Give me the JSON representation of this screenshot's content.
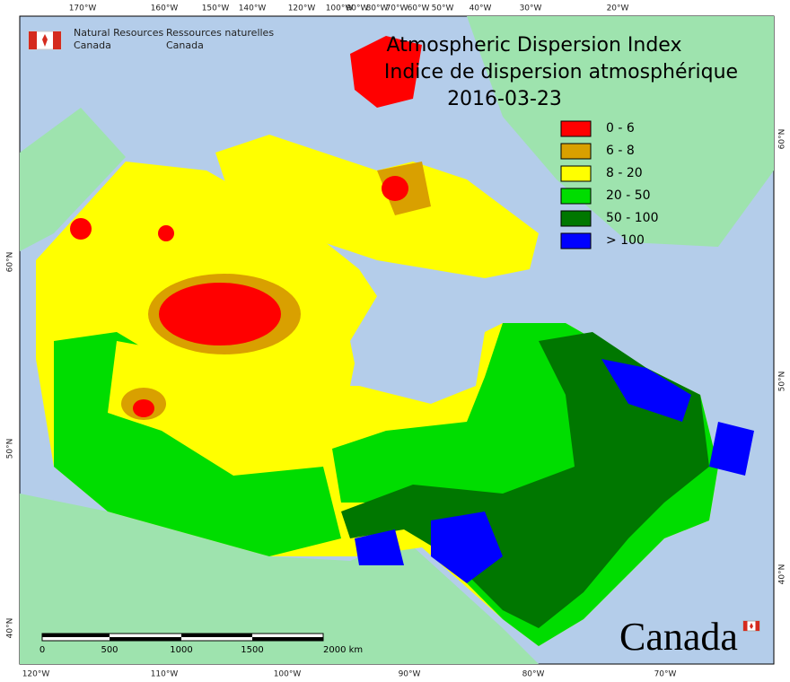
{
  "header": {
    "org_en": [
      "Natural Resources",
      "Canada"
    ],
    "org_fr": [
      "Ressources naturelles",
      "Canada"
    ]
  },
  "title": {
    "en": "Atmospheric Dispersion Index",
    "fr": "Indice de dispersion atmosphérique",
    "date": "2016-03-23"
  },
  "legend": [
    {
      "label": "0 - 6",
      "color": "#ff0000"
    },
    {
      "label": "6 - 8",
      "color": "#d9a000"
    },
    {
      "label": "8 - 20",
      "color": "#ffff00"
    },
    {
      "label": "20 - 50",
      "color": "#00dd00"
    },
    {
      "label": "50 - 100",
      "color": "#007700"
    },
    {
      "label": "> 100",
      "color": "#0000ff"
    }
  ],
  "lon_top": [
    "170°W",
    "160°W",
    "150°W",
    "140°W",
    "120°W",
    "100°W",
    "90°W",
    "80°W",
    "70°W",
    "60°W",
    "50°W",
    "40°W",
    "30°W",
    "20°W"
  ],
  "lon_bottom": [
    "120°W",
    "110°W",
    "100°W",
    "90°W",
    "80°W",
    "70°W"
  ],
  "lat_left": [
    "60°N",
    "50°N",
    "40°N"
  ],
  "lat_right": [
    "60°N",
    "50°N",
    "40°N"
  ],
  "scale_bar": [
    "0",
    "500",
    "1000",
    "1500",
    "2000  km"
  ],
  "wordmark": "Canada"
}
